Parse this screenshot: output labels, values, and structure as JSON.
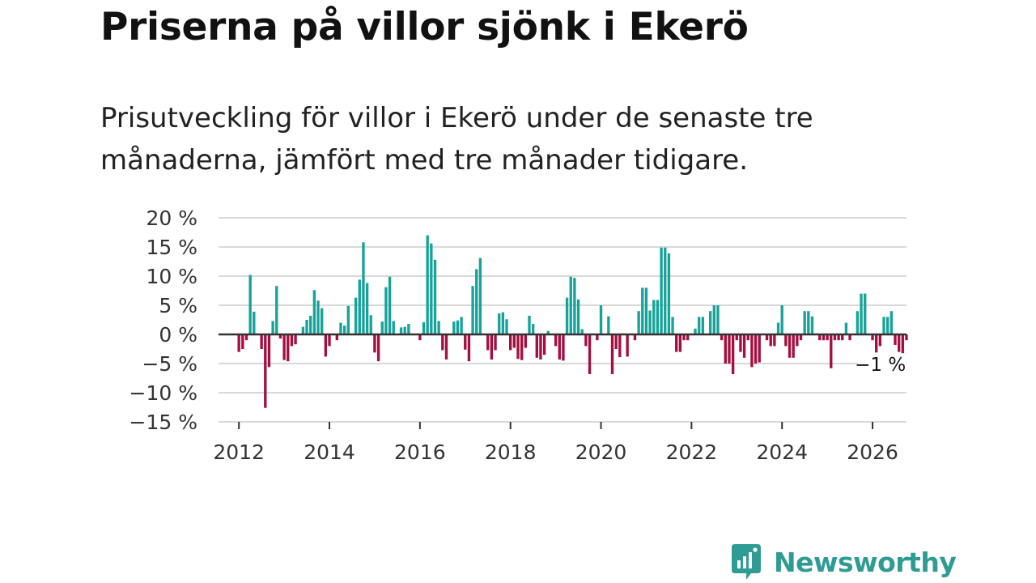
{
  "title": "Priserna på villor sjönk i Ekerö",
  "subtitle": "Prisutveckling för villor i Ekerö under de senaste tre månaderna, jämfört med tre månader tidigare.",
  "brand": "Newsworthy",
  "colors": {
    "positive": "#18a39a",
    "negative": "#a3103f",
    "grid": "#d9d9d9",
    "zero": "#333333",
    "brand": "#2f9c94"
  },
  "chart_data": {
    "type": "bar",
    "title": "Priserna på villor sjönk i Ekerö",
    "xlabel": "",
    "ylabel": "",
    "ylim": [
      -15,
      20
    ],
    "yticks": [
      20,
      15,
      10,
      5,
      0,
      -5,
      -10,
      -15
    ],
    "ytick_labels": [
      "20 %",
      "15 %",
      "10 %",
      "5 %",
      "0 %",
      "−5 %",
      "−10 %",
      "−15 %"
    ],
    "xlim": [
      2011.55,
      2026.75
    ],
    "xticks": [
      2012,
      2014,
      2016,
      2018,
      2020,
      2022,
      2024,
      2026
    ],
    "xtick_labels": [
      "2012",
      "2014",
      "2016",
      "2018",
      "2020",
      "2022",
      "2024",
      "2026"
    ],
    "x_start": 2012.0,
    "x_step": 0.08333,
    "values": [
      -3,
      -2.5,
      -1,
      10.2,
      3.9,
      0,
      -2.5,
      -12.6,
      -5.6,
      2.3,
      8.3,
      -0.7,
      -4.4,
      -4.6,
      -2,
      -1.7,
      0,
      1.3,
      2.5,
      3.2,
      7.6,
      5.8,
      4.5,
      -3.8,
      -2,
      0,
      -1,
      2,
      1.5,
      4.9,
      0,
      6.3,
      9.4,
      15.8,
      8.8,
      3.3,
      -3.1,
      -4.6,
      2.2,
      8.1,
      9.9,
      2.3,
      0,
      1.2,
      1.3,
      1.8,
      0,
      0,
      -1,
      2.1,
      17,
      15.6,
      12.8,
      2.3,
      -2.7,
      -4.3,
      0,
      2.2,
      2.4,
      3,
      -2.6,
      -4.6,
      8.3,
      11.2,
      13.1,
      0,
      -2.7,
      -4.3,
      -2.7,
      3.6,
      3.8,
      2.6,
      -2.7,
      -2.3,
      -4.2,
      -4.4,
      -2.3,
      3.2,
      1.8,
      -4,
      -4.3,
      -3.5,
      0.6,
      0,
      -2,
      -4.3,
      -4.5,
      6.3,
      9.9,
      9.7,
      6,
      0.9,
      -2,
      -6.8,
      0,
      -1,
      5,
      0,
      3.1,
      -6.8,
      -2.5,
      -3.9,
      0,
      -3.8,
      0,
      -1,
      4,
      8,
      8,
      4.1,
      5.9,
      5.9,
      14.9,
      14.9,
      13.9,
      3,
      -3,
      -3,
      -1,
      -1,
      0,
      1,
      3,
      3,
      0,
      4,
      5,
      5,
      -1,
      -5,
      -5,
      -6.8,
      -1,
      -3,
      -4,
      -1,
      -5.6,
      -5,
      -4.8,
      0,
      -1,
      -2,
      -2,
      2,
      5,
      -2,
      -4,
      -4,
      -2,
      -1,
      4,
      4,
      3.1,
      0,
      -1,
      -1,
      -1,
      -5.8,
      -1,
      -1,
      -1,
      2,
      -1,
      0,
      4,
      7,
      7,
      0,
      -1,
      -3.1,
      -2,
      3,
      3,
      4,
      -1.8,
      -3,
      -5.8,
      -1
    ],
    "annotation": {
      "label": "−1 %",
      "value": -1,
      "year": 2026.1
    }
  }
}
